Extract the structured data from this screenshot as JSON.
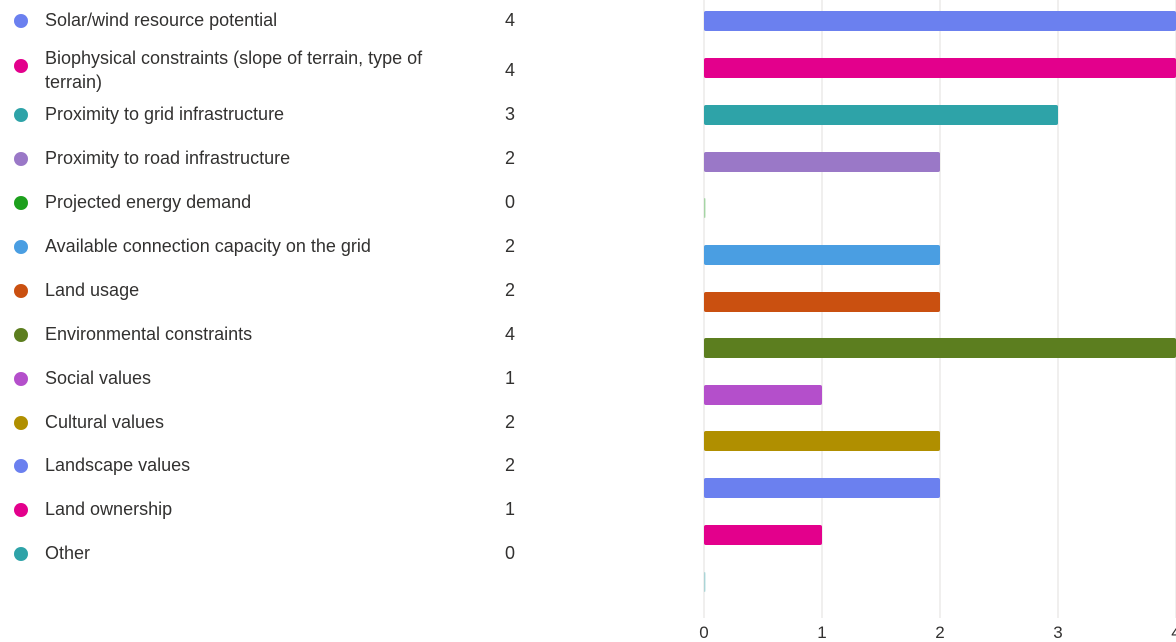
{
  "chart_data": {
    "type": "bar",
    "orientation": "horizontal",
    "categories": [
      "Solar/wind resource potential",
      "Biophysical constraints (slope of terrain, type of terrain)",
      "Proximity to grid infrastructure",
      "Proximity to road infrastructure",
      "Projected energy demand",
      "Available connection capacity on the grid",
      "Land usage",
      "Environmental constraints",
      "Social values",
      "Cultural values",
      "Landscape values",
      "Land ownership",
      "Other"
    ],
    "values": [
      4,
      4,
      3,
      2,
      0,
      2,
      2,
      4,
      1,
      2,
      2,
      1,
      0
    ],
    "colors": [
      "#6b80ef",
      "#e3008c",
      "#2ea3a8",
      "#9a78c7",
      "#1da01d",
      "#4a9ee2",
      "#ca5010",
      "#5c7e1f",
      "#b44fcb",
      "#b08f00",
      "#6b80ef",
      "#e3008c",
      "#2ea3a8"
    ],
    "x_ticks": [
      0,
      1,
      2,
      3,
      4
    ],
    "xlim": [
      0,
      4
    ],
    "grid": true,
    "legend": "left"
  }
}
